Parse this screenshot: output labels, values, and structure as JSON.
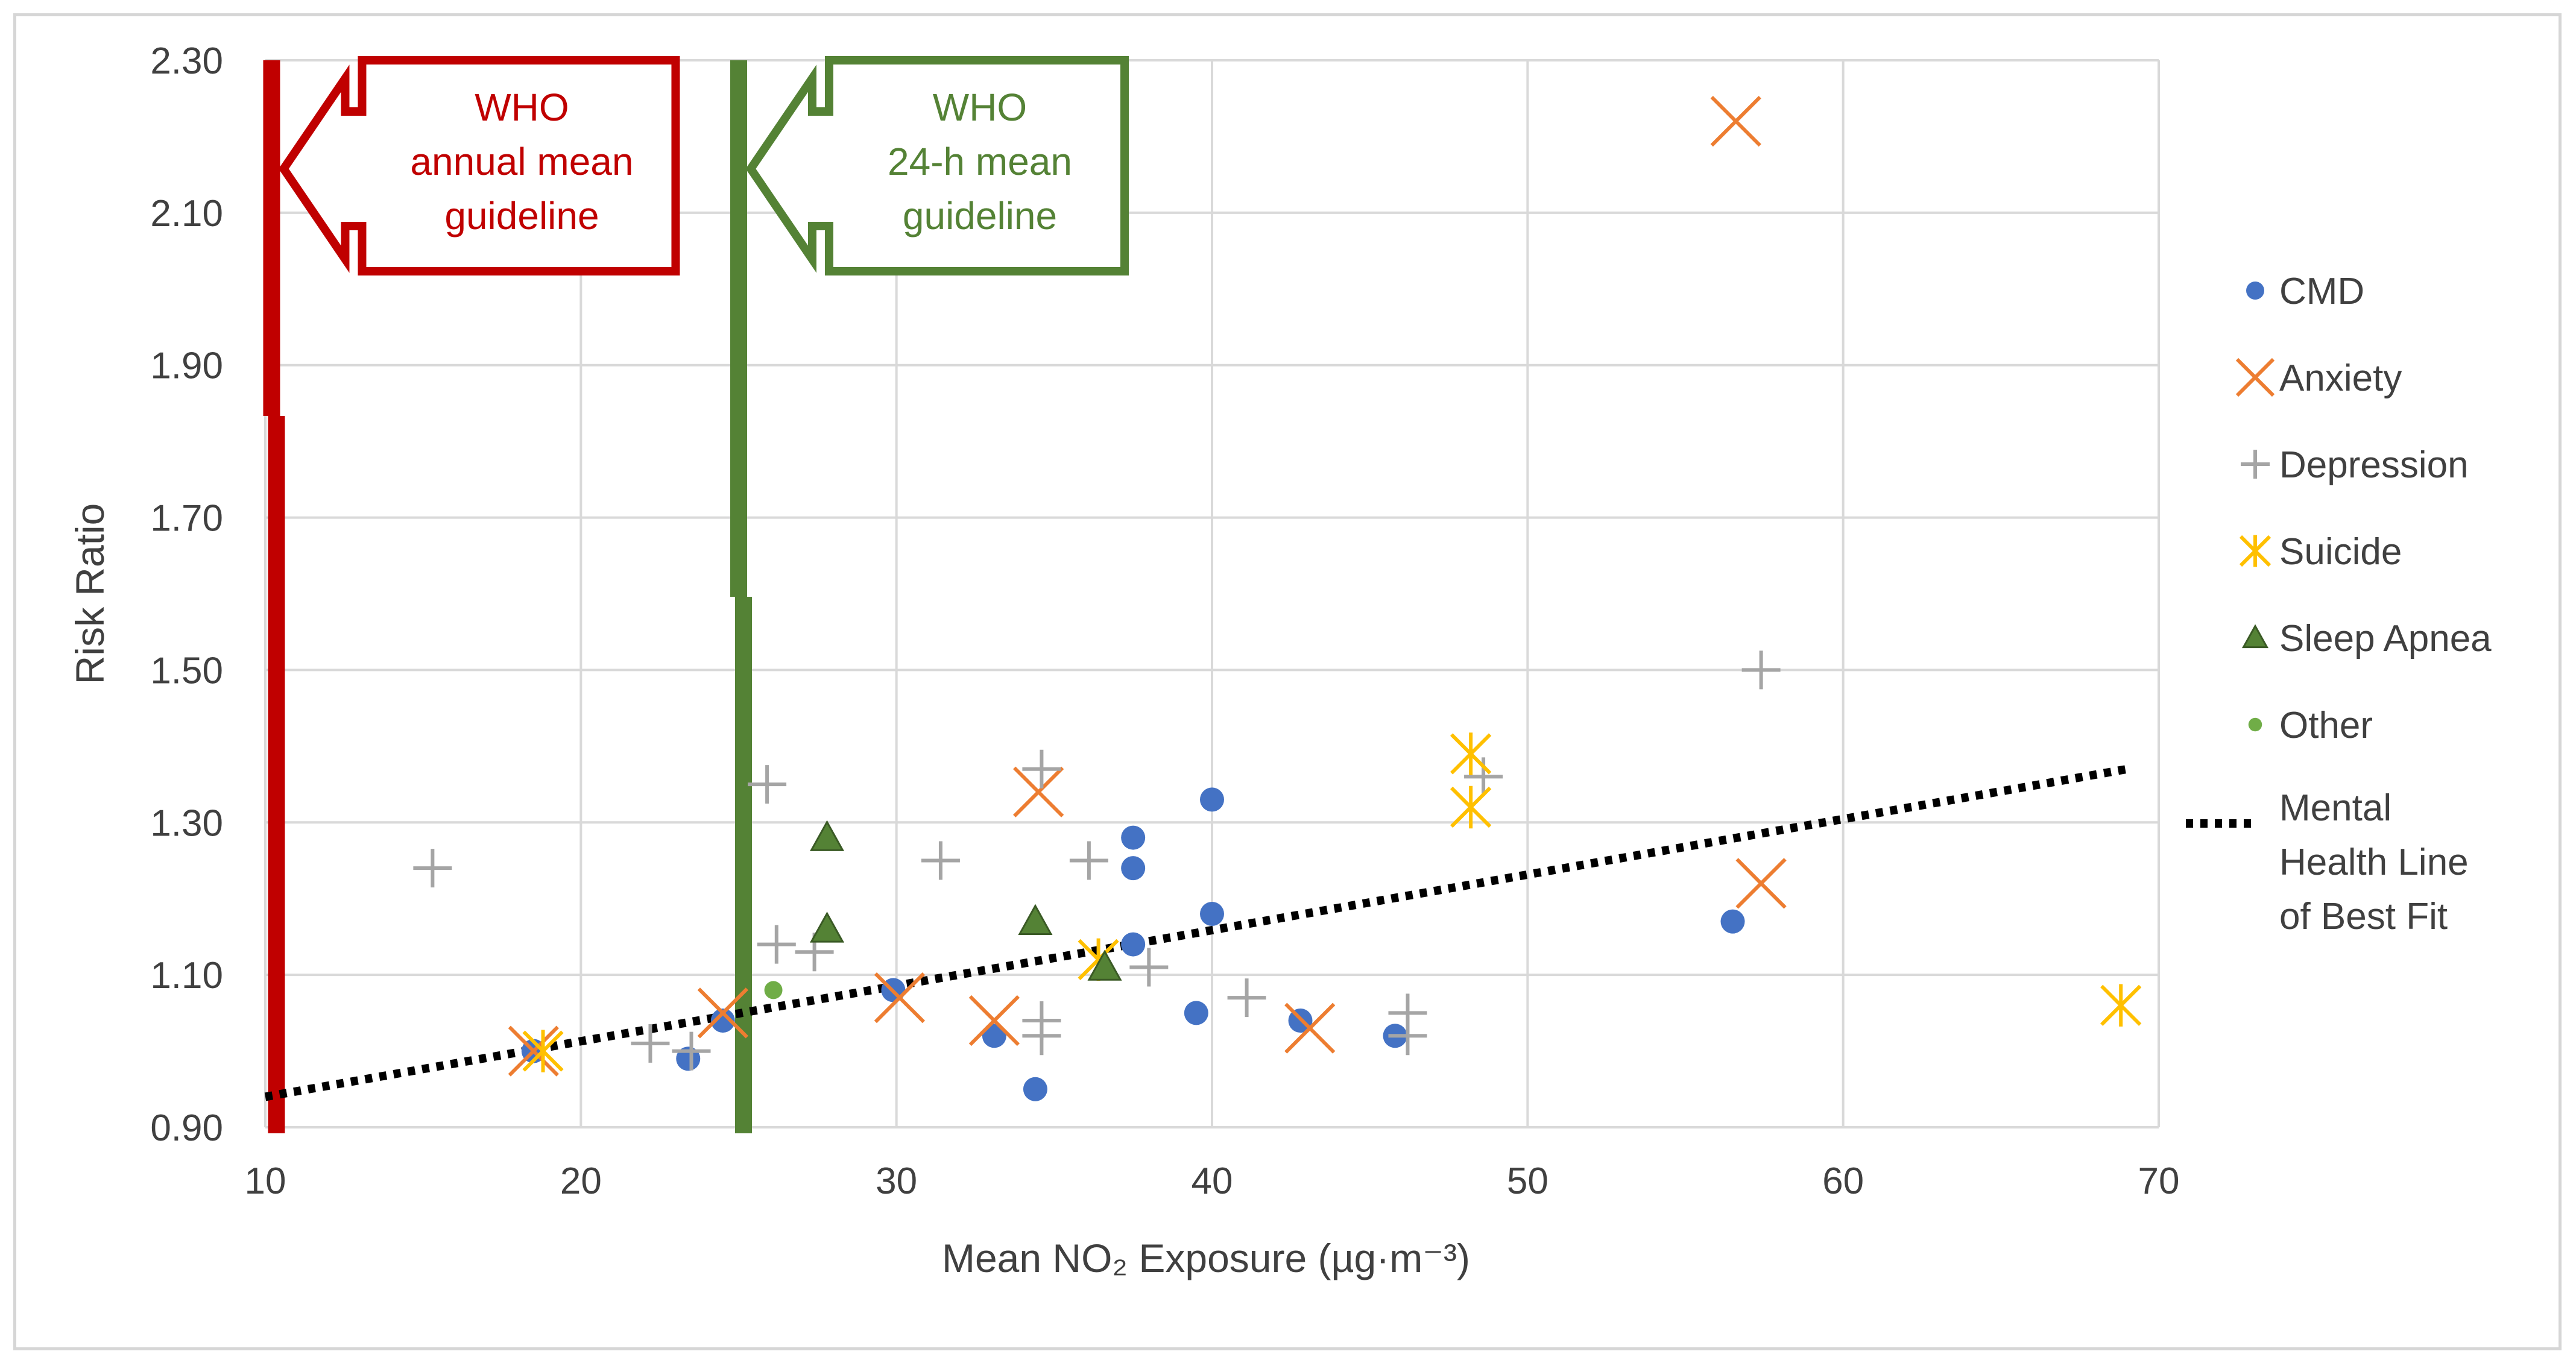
{
  "chart_data": {
    "type": "scatter",
    "title": "",
    "xlabel": "Mean NO₂ Exposure (µg·m⁻³)",
    "ylabel": "Risk Ratio",
    "xlim": [
      10,
      70
    ],
    "ylim": [
      0.9,
      2.3
    ],
    "x_ticks": [
      10,
      20,
      30,
      40,
      50,
      60,
      70
    ],
    "y_ticks": [
      0.9,
      1.1,
      1.3,
      1.5,
      1.7,
      1.9,
      2.1,
      2.3
    ],
    "y_tick_labels": [
      "0.90",
      "1.10",
      "1.30",
      "1.50",
      "1.70",
      "1.90",
      "2.10",
      "2.30"
    ],
    "grid": true,
    "legend_position": "right",
    "series": [
      {
        "name": "CMD",
        "marker": "circle",
        "color": "#4472C4",
        "points": [
          [
            18.5,
            1.0
          ],
          [
            23.4,
            0.99
          ],
          [
            24.5,
            1.04
          ],
          [
            29.9,
            1.08
          ],
          [
            33.1,
            1.02
          ],
          [
            34.4,
            0.95
          ],
          [
            37.5,
            1.28
          ],
          [
            37.5,
            1.24
          ],
          [
            37.5,
            1.14
          ],
          [
            39.5,
            1.05
          ],
          [
            40.0,
            1.33
          ],
          [
            40.0,
            1.18
          ],
          [
            42.8,
            1.04
          ],
          [
            45.8,
            1.02
          ],
          [
            56.5,
            1.17
          ]
        ]
      },
      {
        "name": "Anxiety",
        "marker": "x",
        "color": "#ED7D31",
        "points": [
          [
            18.5,
            1.0
          ],
          [
            24.5,
            1.05
          ],
          [
            30.1,
            1.07
          ],
          [
            33.1,
            1.04
          ],
          [
            34.5,
            1.34
          ],
          [
            43.1,
            1.03
          ],
          [
            56.6,
            2.22
          ],
          [
            57.4,
            1.22
          ]
        ]
      },
      {
        "name": "Depression",
        "marker": "plus",
        "color": "#A5A5A5",
        "points": [
          [
            15.3,
            1.24
          ],
          [
            22.2,
            1.01
          ],
          [
            23.5,
            1.0
          ],
          [
            25.9,
            1.35
          ],
          [
            26.2,
            1.14
          ],
          [
            27.4,
            1.13
          ],
          [
            31.4,
            1.25
          ],
          [
            34.6,
            1.37
          ],
          [
            34.6,
            1.04
          ],
          [
            34.6,
            1.02
          ],
          [
            36.1,
            1.25
          ],
          [
            38.0,
            1.11
          ],
          [
            41.1,
            1.07
          ],
          [
            46.2,
            1.05
          ],
          [
            46.2,
            1.02
          ],
          [
            48.6,
            1.36
          ],
          [
            57.4,
            1.5
          ]
        ]
      },
      {
        "name": "Suicide",
        "marker": "asterisk",
        "color": "#FFC000",
        "points": [
          [
            18.8,
            1.0
          ],
          [
            36.4,
            1.12
          ],
          [
            48.2,
            1.39
          ],
          [
            48.2,
            1.32
          ],
          [
            68.8,
            1.06
          ]
        ]
      },
      {
        "name": "Sleep Apnea",
        "marker": "triangle",
        "color": "#548235",
        "points": [
          [
            27.8,
            1.28
          ],
          [
            27.8,
            1.16
          ],
          [
            34.4,
            1.17
          ],
          [
            36.6,
            1.11
          ]
        ]
      },
      {
        "name": "Other",
        "marker": "circle-small",
        "color": "#70AD47",
        "points": [
          [
            26.1,
            1.08
          ]
        ]
      }
    ],
    "trendline": {
      "name": "Mental Health Line of Best Fit",
      "style": "dotted",
      "color": "#000000",
      "points": [
        [
          10,
          0.94
        ],
        [
          69,
          1.37
        ]
      ]
    },
    "reference_lines": [
      {
        "x": 10.2,
        "color": "#C00000",
        "label_lines": [
          "WHO",
          "annual mean",
          "guideline"
        ]
      },
      {
        "x": 25.0,
        "color": "#548235",
        "label_lines": [
          "WHO",
          "24-h  mean",
          "guideline"
        ]
      }
    ]
  }
}
